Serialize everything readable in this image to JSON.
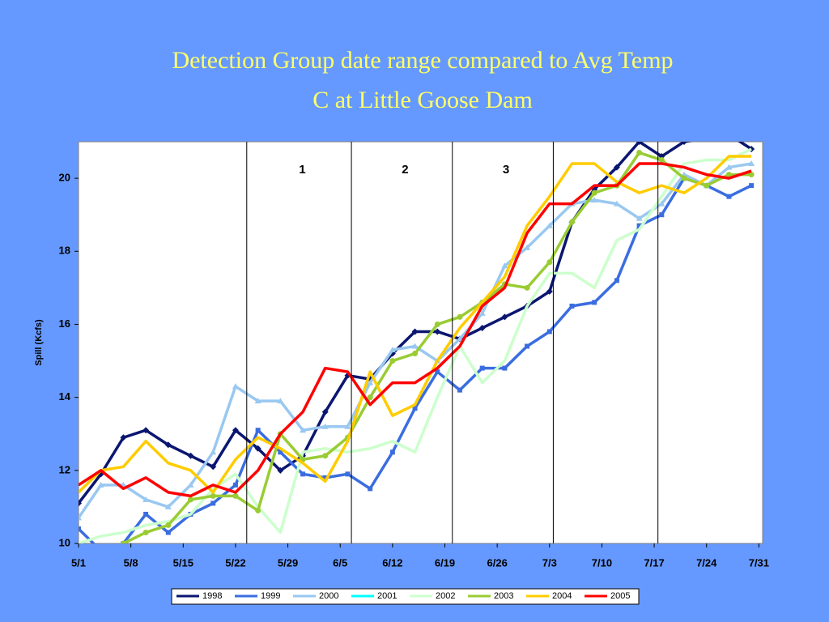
{
  "chart_data": {
    "type": "line",
    "title_lines": [
      "Detection Group date range compared to Avg Temp",
      "C at Little Goose Dam"
    ],
    "y_label": "Spill (Kcfs)",
    "x": [
      0,
      3,
      6,
      9,
      12,
      15,
      18,
      21,
      24,
      27,
      30,
      33,
      36,
      39,
      42,
      45,
      48,
      51,
      54,
      57,
      60,
      63,
      66,
      69,
      72,
      75,
      78,
      81,
      84,
      87,
      90
    ],
    "xlim": [
      0,
      91.5
    ],
    "xticks": [
      {
        "value": 0,
        "label": "5/1"
      },
      {
        "value": 7,
        "label": "5/8"
      },
      {
        "value": 14,
        "label": "5/15"
      },
      {
        "value": 21,
        "label": "5/22"
      },
      {
        "value": 28,
        "label": "5/29"
      },
      {
        "value": 35,
        "label": "6/5"
      },
      {
        "value": 42,
        "label": "6/12"
      },
      {
        "value": 49,
        "label": "6/19"
      },
      {
        "value": 56,
        "label": "6/26"
      },
      {
        "value": 63,
        "label": "7/3"
      },
      {
        "value": 70,
        "label": "7/10"
      },
      {
        "value": 77,
        "label": "7/17"
      },
      {
        "value": 84,
        "label": "7/24"
      },
      {
        "value": 91,
        "label": "7/31"
      }
    ],
    "ylim": [
      10,
      21
    ],
    "yticks": [
      10,
      12,
      14,
      16,
      18,
      20
    ],
    "dividers": [
      22.5,
      36.5,
      50,
      63.5,
      77.5
    ],
    "group_labels": [
      "1",
      "2",
      "3"
    ],
    "series": [
      {
        "name": "1998",
        "color": "#0a1670",
        "marker": "diamond",
        "values": [
          11.1,
          11.9,
          12.9,
          13.1,
          12.7,
          12.4,
          12.1,
          13.1,
          12.6,
          12.0,
          12.4,
          13.6,
          14.6,
          14.5,
          15.2,
          15.8,
          15.8,
          15.6,
          15.9,
          16.2,
          16.5,
          16.9,
          18.8,
          19.7,
          20.3,
          21.0,
          20.6,
          21.0,
          21.1,
          21.2,
          20.8
        ]
      },
      {
        "name": "1999",
        "color": "#3a6de0",
        "marker": "square",
        "values": [
          10.4,
          9.8,
          10.0,
          10.8,
          10.3,
          10.8,
          11.1,
          11.6,
          13.1,
          12.5,
          11.9,
          11.8,
          11.9,
          11.5,
          12.5,
          13.7,
          14.7,
          14.2,
          14.8,
          14.8,
          15.4,
          15.8,
          16.5,
          16.6,
          17.2,
          18.7,
          19.0,
          20.0,
          19.8,
          19.5,
          19.8
        ]
      },
      {
        "name": "2000",
        "color": "#99c8f0",
        "marker": "triangle",
        "values": [
          10.7,
          11.6,
          11.6,
          11.2,
          11.0,
          11.6,
          12.5,
          14.3,
          13.9,
          13.9,
          13.1,
          13.2,
          13.2,
          14.4,
          15.3,
          15.4,
          15.0,
          15.6,
          16.3,
          17.6,
          18.1,
          18.7,
          19.3,
          19.4,
          19.3,
          18.9,
          19.3,
          20.1,
          19.8,
          20.3,
          20.4
        ]
      },
      {
        "name": "2001",
        "color": "#00ffff",
        "marker": "none",
        "values": [
          null,
          null,
          null,
          null,
          null,
          null,
          null,
          null,
          null,
          null,
          null,
          null,
          null,
          null,
          null,
          null,
          null,
          null,
          null,
          null,
          null,
          null,
          null,
          null,
          null,
          null,
          null,
          null,
          null,
          null,
          null
        ]
      },
      {
        "name": "2002",
        "color": "#ccffcc",
        "marker": "none",
        "values": [
          10.0,
          10.2,
          10.3,
          10.5,
          10.6,
          10.8,
          11.5,
          11.9,
          11.0,
          10.3,
          12.5,
          12.6,
          12.5,
          12.6,
          12.8,
          12.5,
          14.0,
          15.4,
          14.4,
          15.0,
          16.5,
          17.4,
          17.4,
          17.0,
          18.3,
          18.6,
          19.5,
          20.4,
          20.5,
          20.5,
          20.8
        ]
      },
      {
        "name": "2003",
        "color": "#99cc33",
        "marker": "circle",
        "values": [
          null,
          null,
          10.0,
          10.3,
          10.5,
          11.2,
          11.3,
          11.3,
          10.9,
          13.0,
          12.3,
          12.4,
          12.9,
          14.0,
          15.0,
          15.2,
          16.0,
          16.2,
          16.6,
          17.1,
          17.0,
          17.7,
          18.8,
          19.6,
          19.8,
          20.7,
          20.5,
          20.0,
          19.8,
          20.1,
          20.1
        ]
      },
      {
        "name": "2004",
        "color": "#ffcc00",
        "marker": "none",
        "values": [
          11.4,
          12.0,
          12.1,
          12.8,
          12.2,
          12.0,
          11.4,
          12.3,
          12.9,
          12.6,
          12.2,
          11.7,
          12.8,
          14.7,
          13.5,
          13.8,
          15.0,
          15.9,
          16.6,
          17.3,
          18.7,
          19.5,
          20.4,
          20.4,
          19.9,
          19.6,
          19.8,
          19.6,
          20.0,
          20.6,
          20.6
        ]
      },
      {
        "name": "2005",
        "color": "#ff0000",
        "marker": "none",
        "values": [
          11.6,
          12.0,
          11.5,
          11.8,
          11.4,
          11.3,
          11.6,
          11.4,
          12.0,
          13.0,
          13.6,
          14.8,
          14.7,
          13.8,
          14.4,
          14.4,
          14.8,
          15.4,
          16.5,
          17.0,
          18.5,
          19.3,
          19.3,
          19.8,
          19.8,
          20.4,
          20.4,
          20.3,
          20.1,
          20.0,
          20.2
        ]
      }
    ]
  }
}
